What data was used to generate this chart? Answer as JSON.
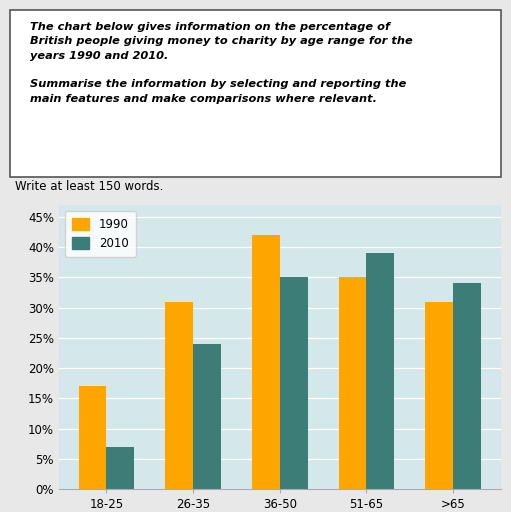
{
  "categories": [
    "18-25",
    "26-35",
    "36-50",
    "51-65",
    ">65"
  ],
  "values_1990": [
    17,
    31,
    42,
    35,
    31
  ],
  "values_2010": [
    7,
    24,
    35,
    39,
    34
  ],
  "color_1990": "#FFA500",
  "color_2010": "#3D7D78",
  "legend_labels": [
    "1990",
    "2010"
  ],
  "yticks": [
    0,
    5,
    10,
    15,
    20,
    25,
    30,
    35,
    40,
    45
  ],
  "ytick_labels": [
    "0%",
    "5%",
    "10%",
    "15%",
    "20%",
    "25%",
    "30%",
    "35%",
    "40%",
    "45%"
  ],
  "ylim": [
    0,
    47
  ],
  "chart_bg": "#D4E8EC",
  "outer_bg": "#E8E8E8",
  "title_text": "The chart below gives information on the percentage of\nBritish people giving money to charity by age range for the\nyears 1990 and 2010.\n\nSummarise the information by selecting and reporting the\nmain features and make comparisons where relevant.",
  "instruction_text": "Write at least 150 words.",
  "bar_width": 0.32
}
